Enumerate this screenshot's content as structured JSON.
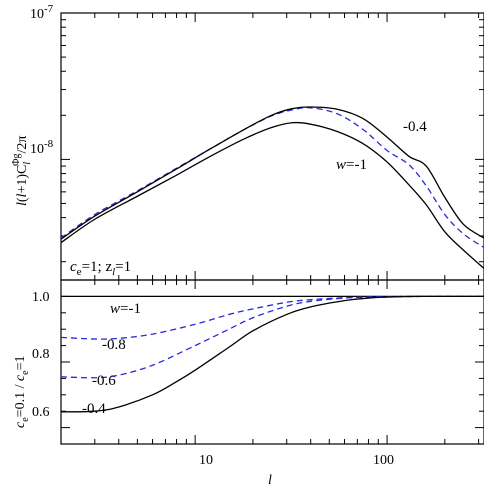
{
  "chart_data": [
    {
      "type": "line",
      "ylabel": "l(l+1)C_l^{Φg}/2π",
      "ylabel_parts": {
        "pre": "l",
        "mid": "(",
        "l2": "l",
        "post": "+1)C",
        "sub": "l",
        "sup": "Φg",
        "tail": "/2π"
      },
      "xscale": "log",
      "yscale": "log",
      "xlim": [
        2,
        320
      ],
      "ylim": [
        1.5e-09,
        1e-07
      ],
      "y_tick_labels": [
        {
          "value": 1e-07,
          "base": "10",
          "exp": "-7"
        },
        {
          "value": 1e-08,
          "base": "10",
          "exp": "-8"
        }
      ],
      "annotations": [
        {
          "id": "w_lbl",
          "pre": "w",
          "text": "=-1"
        },
        {
          "id": "m04_lbl",
          "text": "-0.4"
        },
        {
          "id": "ce_lbl",
          "text": "c",
          "sub": "e",
          "rest": "=1;  z",
          "sub2": "l",
          "rest2": "=1"
        }
      ],
      "series": [
        {
          "style": "solid",
          "color": "#000000",
          "x": [
            2,
            3,
            5,
            8,
            12,
            18,
            25,
            32,
            40,
            55,
            75,
            100,
            130,
            160,
            200,
            250,
            320
          ],
          "y": [
            2.7e-09,
            3.9e-09,
            5.6e-09,
            7.8e-09,
            1.05e-08,
            1.38e-08,
            1.65e-08,
            1.78e-08,
            1.74e-08,
            1.55e-08,
            1.28e-08,
            9.6e-09,
            6.7e-09,
            4.9e-09,
            3.2e-09,
            2.4e-09,
            1.8e-09
          ]
        },
        {
          "style": "dashed",
          "color": "#2a2adc",
          "x": [
            2,
            3,
            5,
            8,
            12,
            18,
            25,
            32,
            40,
            55,
            75,
            100,
            130,
            160,
            200,
            250,
            320
          ],
          "y": [
            2.9e-09,
            4.2e-09,
            6.1e-09,
            8.7e-09,
            1.18e-08,
            1.6e-08,
            1.98e-08,
            2.18e-08,
            2.25e-08,
            2.05e-08,
            1.6e-08,
            1.15e-08,
            9.2e-09,
            6.6e-09,
            4.2e-09,
            3.1e-09,
            2.5e-09
          ]
        },
        {
          "style": "solid",
          "color": "#000000",
          "x": [
            2,
            3,
            5,
            8,
            12,
            18,
            25,
            32,
            40,
            55,
            75,
            100,
            130,
            160,
            200,
            250,
            320
          ],
          "y": [
            2.85e-09,
            4.1e-09,
            6e-09,
            8.6e-09,
            1.18e-08,
            1.6e-08,
            2e-08,
            2.22e-08,
            2.28e-08,
            2.2e-08,
            1.9e-08,
            1.42e-08,
            1.05e-08,
            9e-09,
            5.5e-09,
            3.6e-09,
            2.9e-09
          ]
        }
      ]
    },
    {
      "type": "line",
      "xlabel": "l",
      "ylabel": "c_e=0.1 / c_e=1",
      "ylabel_parts": {
        "c1": "c",
        "s1": "e",
        "mid": "=0.1 / ",
        "c2": "c",
        "s2": "e",
        "tail": "=1"
      },
      "xscale": "log",
      "xlim": [
        2,
        320
      ],
      "ylim": [
        0.55,
        1.05
      ],
      "x_tick_labels": [
        {
          "value": 10,
          "label": "10"
        },
        {
          "value": 100,
          "label": "100"
        }
      ],
      "y_tick_labels": [
        {
          "value": 1.0,
          "label": "1.0"
        },
        {
          "value": 0.8,
          "label": "0.8"
        },
        {
          "value": 0.6,
          "label": "0.6"
        }
      ],
      "annotations": [
        {
          "id": "w_lbl2",
          "pre": "w",
          "text": "=-1"
        },
        {
          "id": "m08",
          "text": "-0.8"
        },
        {
          "id": "m06",
          "text": "-0.6"
        },
        {
          "id": "m04",
          "text": "-0.4"
        }
      ],
      "series": [
        {
          "style": "solid",
          "color": "#000000",
          "x": [
            2,
            320
          ],
          "y": [
            1.0,
            1.0
          ]
        },
        {
          "style": "dashed",
          "color": "#2a2adc",
          "x": [
            2,
            3,
            4,
            6,
            10,
            15,
            20,
            30,
            40,
            60,
            80,
            100,
            150,
            200,
            320
          ],
          "y": [
            0.875,
            0.87,
            0.872,
            0.885,
            0.915,
            0.945,
            0.962,
            0.982,
            0.99,
            0.996,
            0.998,
            0.999,
            1.0,
            1.0,
            1.0
          ]
        },
        {
          "style": "dashed",
          "color": "#2a2adc",
          "x": [
            2,
            3,
            4,
            6,
            10,
            15,
            20,
            30,
            40,
            60,
            80,
            100,
            150,
            200,
            320
          ],
          "y": [
            0.755,
            0.752,
            0.76,
            0.79,
            0.85,
            0.9,
            0.935,
            0.97,
            0.985,
            0.995,
            0.998,
            0.999,
            1.0,
            1.0,
            1.0
          ]
        },
        {
          "style": "solid",
          "color": "#000000",
          "x": [
            2,
            3,
            4,
            6,
            8,
            10,
            15,
            20,
            30,
            40,
            60,
            80,
            100,
            150,
            200,
            320
          ],
          "y": [
            0.648,
            0.65,
            0.663,
            0.7,
            0.74,
            0.775,
            0.845,
            0.895,
            0.945,
            0.968,
            0.987,
            0.995,
            0.998,
            1.0,
            1.0,
            1.0
          ]
        }
      ]
    }
  ]
}
